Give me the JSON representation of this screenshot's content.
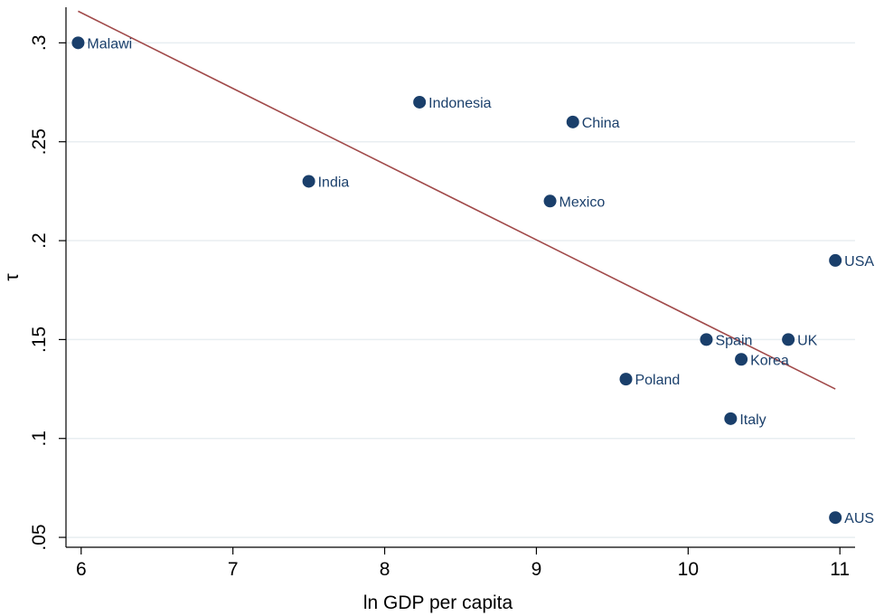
{
  "chart_data": {
    "type": "scatter",
    "title": "",
    "xlabel": "ln GDP per capita",
    "ylabel": "τ",
    "xlim": [
      5.9,
      11.1
    ],
    "ylim": [
      0.045,
      0.318
    ],
    "xticks": [
      6,
      7,
      8,
      9,
      10,
      11
    ],
    "yticks": [
      0.05,
      0.1,
      0.15,
      0.2,
      0.25,
      0.3
    ],
    "ytick_labels": [
      ".05",
      ".1",
      ".15",
      ".2",
      ".25",
      ".3"
    ],
    "grid": true,
    "points": [
      {
        "label": "Malawi",
        "x": 5.98,
        "y": 0.3
      },
      {
        "label": "Indonesia",
        "x": 8.23,
        "y": 0.27
      },
      {
        "label": "China",
        "x": 9.24,
        "y": 0.26
      },
      {
        "label": "India",
        "x": 7.5,
        "y": 0.23
      },
      {
        "label": "Mexico",
        "x": 9.09,
        "y": 0.22
      },
      {
        "label": "USA",
        "x": 10.97,
        "y": 0.19
      },
      {
        "label": "Spain",
        "x": 10.12,
        "y": 0.15
      },
      {
        "label": "UK",
        "x": 10.66,
        "y": 0.15
      },
      {
        "label": "Korea",
        "x": 10.35,
        "y": 0.14
      },
      {
        "label": "Poland",
        "x": 9.59,
        "y": 0.13
      },
      {
        "label": "Italy",
        "x": 10.28,
        "y": 0.11
      },
      {
        "label": "AUS",
        "x": 10.97,
        "y": 0.06
      }
    ],
    "fit_line": {
      "x": [
        5.98,
        10.97
      ],
      "y": [
        0.316,
        0.125
      ]
    },
    "colors": {
      "marker": "#1a3f6b",
      "fit_line": "#a14a4a",
      "grid": "#e8eef1",
      "label": "#1a3f6b"
    }
  }
}
